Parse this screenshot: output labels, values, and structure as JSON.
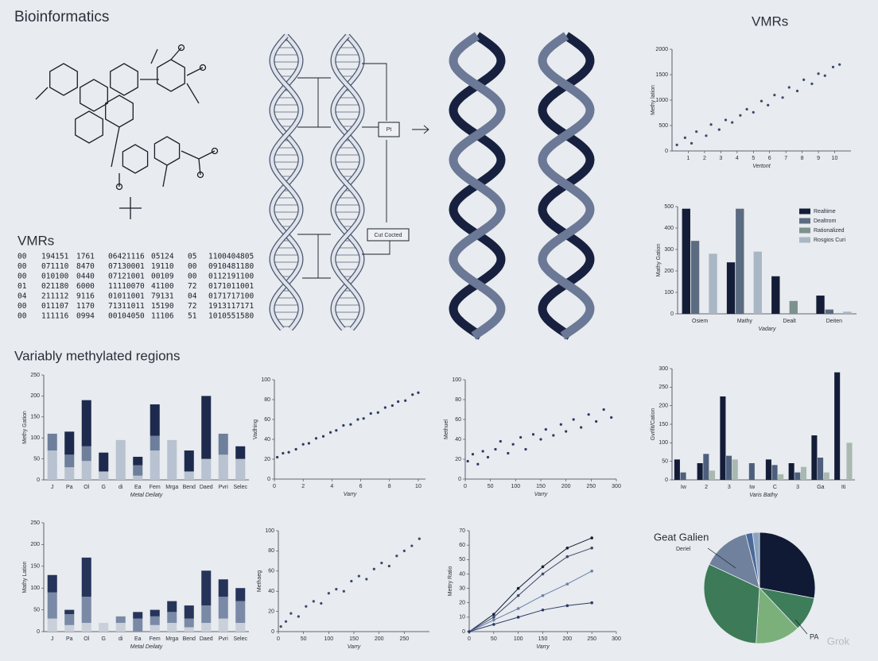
{
  "header": {
    "title": "Bioinformatics",
    "subtitle": "VMRs"
  },
  "table": {
    "rows": [
      [
        "00",
        "194151",
        "1761",
        "06421116",
        "05124",
        "05",
        "1100404805"
      ],
      [
        "00",
        "071110",
        "8470",
        "07130001",
        "19110",
        "00",
        "0910481180"
      ],
      [
        "00",
        "010100",
        "0440",
        "07121001",
        "00109",
        "00",
        "0112191100"
      ],
      [
        "01",
        "021180",
        "6000",
        "11110070",
        "41100",
        "72",
        "0171011001"
      ],
      [
        "04",
        "211112",
        "9116",
        "01011001",
        "79131",
        "04",
        "0171717100"
      ],
      [
        "00",
        "011107",
        "1170",
        "71311011",
        "15190",
        "72",
        "1913117171"
      ],
      [
        "00",
        "111116",
        "0994",
        "00104050",
        "11106",
        "51",
        "1010551580"
      ]
    ]
  },
  "diagram": {
    "box_1": "Pt",
    "box_2": "Cut Cocted"
  },
  "watermark": "Grok",
  "chart_data": [
    {
      "type": "scatter",
      "title": "VMRs",
      "x_label": "Vertont",
      "y_label": "Methy lation",
      "color": "#3a4a6b",
      "xlim": [
        0,
        11
      ],
      "xticks": [
        1,
        2,
        3,
        4,
        5,
        6,
        7,
        8,
        9,
        10
      ],
      "ylim": [
        0,
        2000
      ],
      "yticks": [
        0,
        500,
        1000,
        1500,
        2000
      ],
      "x": [
        0.3,
        0.8,
        1.2,
        1.5,
        2.1,
        2.4,
        2.9,
        3.3,
        3.7,
        4.2,
        4.6,
        5.0,
        5.5,
        5.9,
        6.3,
        6.8,
        7.2,
        7.7,
        8.1,
        8.6,
        9.0,
        9.4,
        9.9,
        10.3
      ],
      "values": [
        120,
        260,
        150,
        380,
        300,
        520,
        420,
        610,
        560,
        700,
        820,
        760,
        980,
        900,
        1100,
        1050,
        1250,
        1180,
        1400,
        1320,
        1520,
        1480,
        1650,
        1700
      ]
    },
    {
      "type": "bar",
      "x_label": "Vadary",
      "y_label": "Mathy Gation",
      "legend": "top-right",
      "categories": [
        "Osiem",
        "Mathy",
        "Dealt",
        "Deiten"
      ],
      "ylim": [
        0,
        500
      ],
      "yticks": [
        0,
        100,
        200,
        300,
        400,
        500
      ],
      "series": [
        {
          "name": "Realtime",
          "color": "#141d38",
          "values": [
            490,
            240,
            175,
            85
          ]
        },
        {
          "name": "Dealtrom",
          "color": "#5b6b80",
          "values": [
            340,
            490,
            0,
            20
          ]
        },
        {
          "name": "Rationalized",
          "color": "#7d918d",
          "values": [
            0,
            0,
            60,
            0
          ]
        },
        {
          "name": "Rosgios Curi",
          "color": "#a9b7c4",
          "values": [
            280,
            290,
            0,
            10
          ]
        }
      ]
    },
    {
      "type": "bar",
      "stacked": true,
      "title": "Variably methylated regions",
      "x_label": "Metal Deilaty",
      "y_label": "Methy Gation",
      "categories": [
        "J",
        "Pa",
        "Ol",
        "G",
        "di",
        "Ea",
        "Fem",
        "Mrga",
        "Bend",
        "Daed",
        "Pvri",
        "Selec"
      ],
      "ylim": [
        0,
        250
      ],
      "yticks": [
        0,
        50,
        100,
        150,
        200,
        250
      ],
      "series": [
        {
          "color": "#b8c2d0",
          "values": [
            70,
            30,
            45,
            20,
            95,
            10,
            70,
            95,
            20,
            50,
            60,
            50
          ]
        },
        {
          "color": "#6e7f9c",
          "values": [
            40,
            30,
            35,
            0,
            0,
            25,
            35,
            0,
            0,
            0,
            50,
            0
          ]
        },
        {
          "color": "#1e2a4d",
          "values": [
            0,
            55,
            110,
            45,
            0,
            20,
            75,
            0,
            50,
            150,
            0,
            30
          ]
        }
      ]
    },
    {
      "type": "scatter",
      "x_label": "Varry",
      "y_label": "Vadhing",
      "color": "#2c3a66",
      "xlim": [
        0,
        10.5
      ],
      "xticks": [
        0,
        2,
        4,
        6,
        8,
        10
      ],
      "ylim": [
        0,
        100
      ],
      "yticks": [
        0,
        20,
        40,
        60,
        80,
        100
      ],
      "x": [
        0.2,
        0.6,
        1.0,
        1.5,
        2.0,
        2.4,
        2.9,
        3.4,
        3.9,
        4.3,
        4.8,
        5.3,
        5.8,
        6.2,
        6.7,
        7.2,
        7.7,
        8.2,
        8.6,
        9.1,
        9.6,
        10.0
      ],
      "values": [
        22,
        26,
        27,
        30,
        35,
        36,
        41,
        43,
        47,
        49,
        54,
        55,
        60,
        61,
        66,
        67,
        72,
        74,
        78,
        79,
        85,
        87
      ]
    },
    {
      "type": "scatter",
      "x_label": "Varry",
      "y_label": "Methuel",
      "color": "#2c3a66",
      "xlim": [
        0,
        300
      ],
      "xticks": [
        0,
        50,
        100,
        150,
        200,
        250,
        300
      ],
      "ylim": [
        0,
        100
      ],
      "yticks": [
        0,
        20,
        40,
        60,
        80,
        100
      ],
      "x": [
        5,
        15,
        25,
        35,
        45,
        60,
        70,
        85,
        95,
        110,
        120,
        135,
        150,
        160,
        175,
        190,
        200,
        215,
        230,
        245,
        260,
        275,
        290
      ],
      "values": [
        18,
        25,
        15,
        28,
        22,
        30,
        38,
        26,
        35,
        42,
        30,
        45,
        40,
        50,
        44,
        55,
        48,
        60,
        52,
        65,
        58,
        70,
        62
      ]
    },
    {
      "type": "bar",
      "x_label": "Varis Bathy",
      "y_label": "Gvrlfit/Cation",
      "categories": [
        "Iw",
        "2",
        "3",
        "Iw",
        "C",
        "3",
        "Ga",
        "Iti"
      ],
      "ylim": [
        0,
        300
      ],
      "yticks": [
        0,
        50,
        100,
        150,
        200,
        250,
        300
      ],
      "series": [
        {
          "color": "#141d38",
          "values": [
            55,
            45,
            225,
            0,
            55,
            45,
            120,
            290
          ]
        },
        {
          "color": "#4d5f7c",
          "values": [
            20,
            70,
            65,
            45,
            40,
            20,
            60,
            0
          ]
        },
        {
          "color": "#a9b8b0",
          "values": [
            0,
            25,
            55,
            0,
            15,
            35,
            20,
            100
          ]
        }
      ]
    },
    {
      "type": "bar",
      "stacked": true,
      "x_label": "Metal Deilaty",
      "y_label": "Mathy Lation",
      "categories": [
        "J",
        "Pa",
        "Ol",
        "G",
        "di",
        "Ea",
        "Fem",
        "Mrga",
        "Bend",
        "Daed",
        "Pvri",
        "Selec"
      ],
      "ylim": [
        0,
        250
      ],
      "yticks": [
        0,
        50,
        100,
        150,
        200,
        250
      ],
      "series": [
        {
          "color": "#c9d0da",
          "values": [
            30,
            15,
            20,
            20,
            20,
            0,
            15,
            20,
            10,
            20,
            30,
            20
          ]
        },
        {
          "color": "#7a8aa6",
          "values": [
            60,
            25,
            60,
            0,
            15,
            30,
            20,
            25,
            20,
            40,
            50,
            50
          ]
        },
        {
          "color": "#27345a",
          "values": [
            40,
            10,
            90,
            0,
            0,
            15,
            15,
            25,
            30,
            80,
            40,
            30
          ]
        }
      ]
    },
    {
      "type": "scatter",
      "x_label": "Varry",
      "y_label": "Methaeg",
      "color": "#3a4a6b",
      "xlim": [
        0,
        300
      ],
      "xticks": [
        0,
        50,
        100,
        150,
        200,
        250
      ],
      "ylim": [
        0,
        100
      ],
      "yticks": [
        0,
        20,
        40,
        60,
        80,
        100
      ],
      "x": [
        5,
        15,
        25,
        40,
        55,
        70,
        85,
        100,
        115,
        130,
        145,
        160,
        175,
        190,
        205,
        220,
        235,
        250,
        265,
        280
      ],
      "values": [
        5,
        10,
        18,
        15,
        25,
        30,
        28,
        38,
        42,
        40,
        50,
        55,
        52,
        62,
        68,
        65,
        75,
        80,
        85,
        92
      ]
    },
    {
      "type": "line",
      "x_label": "Varry",
      "y_label": "Mettry Ratio",
      "xlim": [
        0,
        300
      ],
      "xticks": [
        0,
        50,
        100,
        150,
        200,
        250,
        300
      ],
      "ylim": [
        0,
        70
      ],
      "yticks": [
        0,
        10,
        20,
        30,
        40,
        50,
        60,
        70
      ],
      "x": [
        0,
        50,
        100,
        150,
        200,
        250
      ],
      "series": [
        {
          "color": "#141d38",
          "values": [
            0,
            12,
            30,
            45,
            58,
            65
          ]
        },
        {
          "color": "#3a4a6b",
          "values": [
            0,
            10,
            25,
            40,
            52,
            58
          ]
        },
        {
          "color": "#6a7fa8",
          "values": [
            0,
            8,
            16,
            25,
            33,
            42
          ]
        },
        {
          "color": "#2c3a66",
          "values": [
            0,
            5,
            10,
            15,
            18,
            20
          ]
        }
      ]
    },
    {
      "type": "pie",
      "title": "Geat Galien",
      "subtitle": "Deriel",
      "annotation": "PA",
      "values": [
        28,
        10,
        13,
        31,
        14,
        2,
        2
      ],
      "colors": [
        "#101a35",
        "#3e7d5a",
        "#7bb07a",
        "#3c7a58",
        "#6f819c",
        "#4a6a9a",
        "#8aa3c0"
      ]
    }
  ]
}
